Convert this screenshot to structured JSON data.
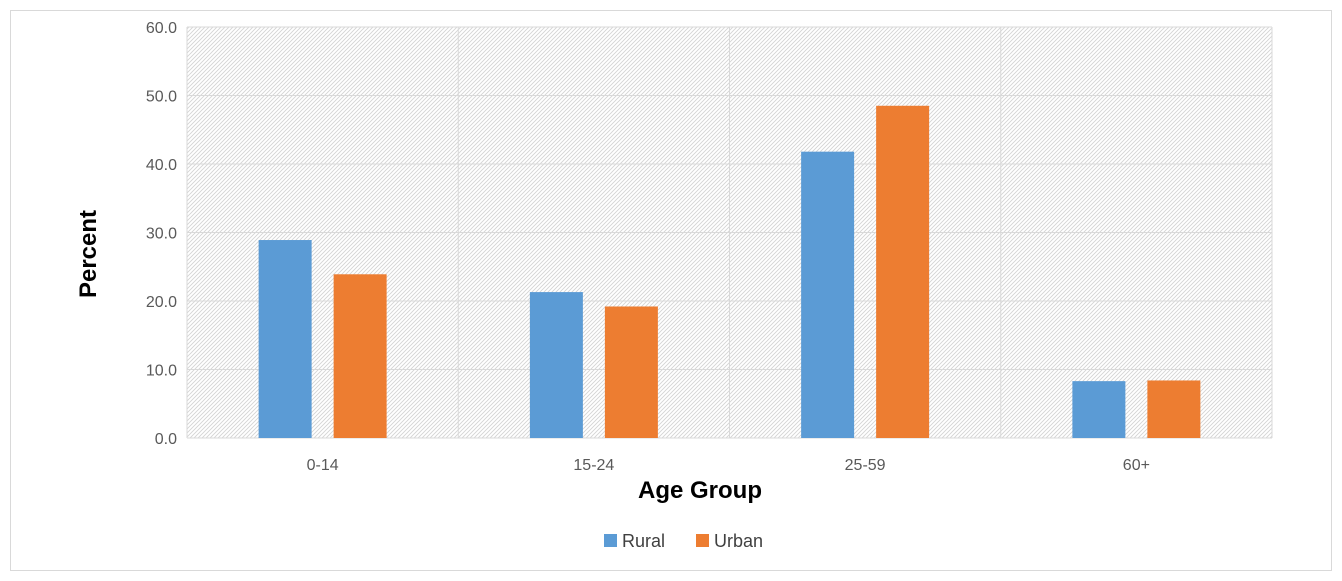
{
  "chart_data": {
    "type": "bar",
    "title": "",
    "xlabel": "Age Group",
    "ylabel": "Percent",
    "categories": [
      "0-14",
      "15-24",
      "25-59",
      "60+"
    ],
    "series": [
      {
        "name": "Rural",
        "color": "#5b9bd5",
        "values": [
          28.9,
          21.3,
          41.8,
          8.3
        ]
      },
      {
        "name": "Urban",
        "color": "#ed7d31",
        "values": [
          23.9,
          19.2,
          48.5,
          8.4
        ]
      }
    ],
    "ylim": [
      0,
      60
    ],
    "yticks": [
      "0.0",
      "10.0",
      "20.0",
      "30.0",
      "40.0",
      "50.0",
      "60.0"
    ],
    "grid": true,
    "legend_position": "bottom"
  }
}
